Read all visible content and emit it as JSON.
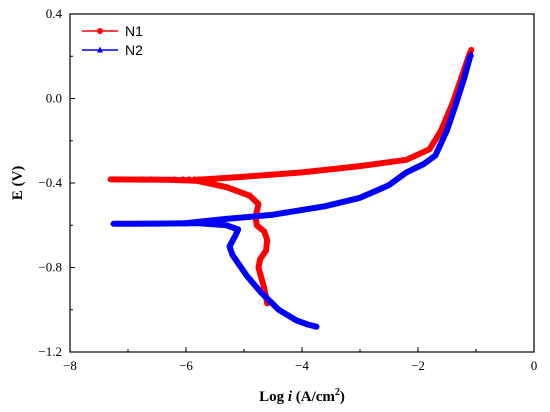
{
  "chart_data": {
    "type": "line",
    "xlabel_prefix": "Log ",
    "xlabel_var": "i",
    "xlabel_unit": " (A/cm",
    "xlabel_sup": "2",
    "xlabel_close": ")",
    "ylabel": "E (V)",
    "xlim": [
      -8,
      0
    ],
    "ylim": [
      -1.2,
      0.4
    ],
    "x_ticks": [
      -8,
      -6,
      -4,
      -2,
      0
    ],
    "x_tick_labels": [
      "−8",
      "−6",
      "−4",
      "−2",
      "0"
    ],
    "y_ticks": [
      -1.2,
      -0.8,
      -0.4,
      0.0,
      0.4
    ],
    "y_tick_labels": [
      "−1.2",
      "−0.8",
      "−0.4",
      "0.0",
      "0.4"
    ],
    "legend_position": "top-left",
    "grid": false,
    "series": [
      {
        "name": "N1",
        "color": "#ff0000",
        "marker": "circle",
        "cathodic": [
          [
            -4.6,
            -0.97
          ],
          [
            -4.65,
            -0.9
          ],
          [
            -4.7,
            -0.85
          ],
          [
            -4.75,
            -0.8
          ],
          [
            -4.72,
            -0.76
          ],
          [
            -4.62,
            -0.72
          ],
          [
            -4.6,
            -0.67
          ],
          [
            -4.65,
            -0.63
          ],
          [
            -4.78,
            -0.6
          ],
          [
            -4.8,
            -0.56
          ],
          [
            -4.75,
            -0.5
          ],
          [
            -4.9,
            -0.46
          ],
          [
            -5.3,
            -0.42
          ],
          [
            -5.8,
            -0.39
          ],
          [
            -6.3,
            -0.385
          ],
          [
            -7.3,
            -0.383
          ]
        ],
        "anodic": [
          [
            -5.8,
            -0.385
          ],
          [
            -5.0,
            -0.37
          ],
          [
            -4.0,
            -0.35
          ],
          [
            -3.0,
            -0.32
          ],
          [
            -2.2,
            -0.29
          ],
          [
            -1.8,
            -0.24
          ],
          [
            -1.6,
            -0.15
          ],
          [
            -1.4,
            -0.02
          ],
          [
            -1.25,
            0.1
          ],
          [
            -1.1,
            0.22
          ]
        ],
        "markers_x": [
          -6.75,
          -6.6,
          -6.2,
          -6.05,
          -5.95,
          -5.85,
          -5.78
        ],
        "markers_y": -0.383,
        "end_marker": [
          -1.08,
          0.23
        ]
      },
      {
        "name": "N2",
        "color": "#0000ff",
        "marker": "triangle",
        "cathodic": [
          [
            -3.75,
            -1.08
          ],
          [
            -3.9,
            -1.07
          ],
          [
            -4.1,
            -1.05
          ],
          [
            -4.4,
            -1.0
          ],
          [
            -4.7,
            -0.92
          ],
          [
            -4.95,
            -0.84
          ],
          [
            -5.1,
            -0.78
          ],
          [
            -5.2,
            -0.74
          ],
          [
            -5.25,
            -0.7
          ],
          [
            -5.15,
            -0.65
          ],
          [
            -5.1,
            -0.62
          ],
          [
            -5.3,
            -0.6
          ],
          [
            -5.8,
            -0.59
          ],
          [
            -6.5,
            -0.592
          ],
          [
            -7.25,
            -0.593
          ]
        ],
        "anodic": [
          [
            -6.0,
            -0.59
          ],
          [
            -5.3,
            -0.57
          ],
          [
            -4.5,
            -0.55
          ],
          [
            -3.6,
            -0.51
          ],
          [
            -3.0,
            -0.47
          ],
          [
            -2.5,
            -0.41
          ],
          [
            -2.2,
            -0.35
          ],
          [
            -1.9,
            -0.31
          ],
          [
            -1.7,
            -0.27
          ],
          [
            -1.5,
            -0.15
          ],
          [
            -1.35,
            -0.03
          ],
          [
            -1.2,
            0.1
          ],
          [
            -1.1,
            0.2
          ]
        ],
        "markers_x": [
          -7.2,
          -6.85,
          -6.7,
          -6.55,
          -6.4,
          -6.3,
          -6.2,
          -6.1,
          -6.0
        ],
        "markers_y": -0.593,
        "end_marker": [
          -1.08,
          0.21
        ]
      }
    ]
  }
}
